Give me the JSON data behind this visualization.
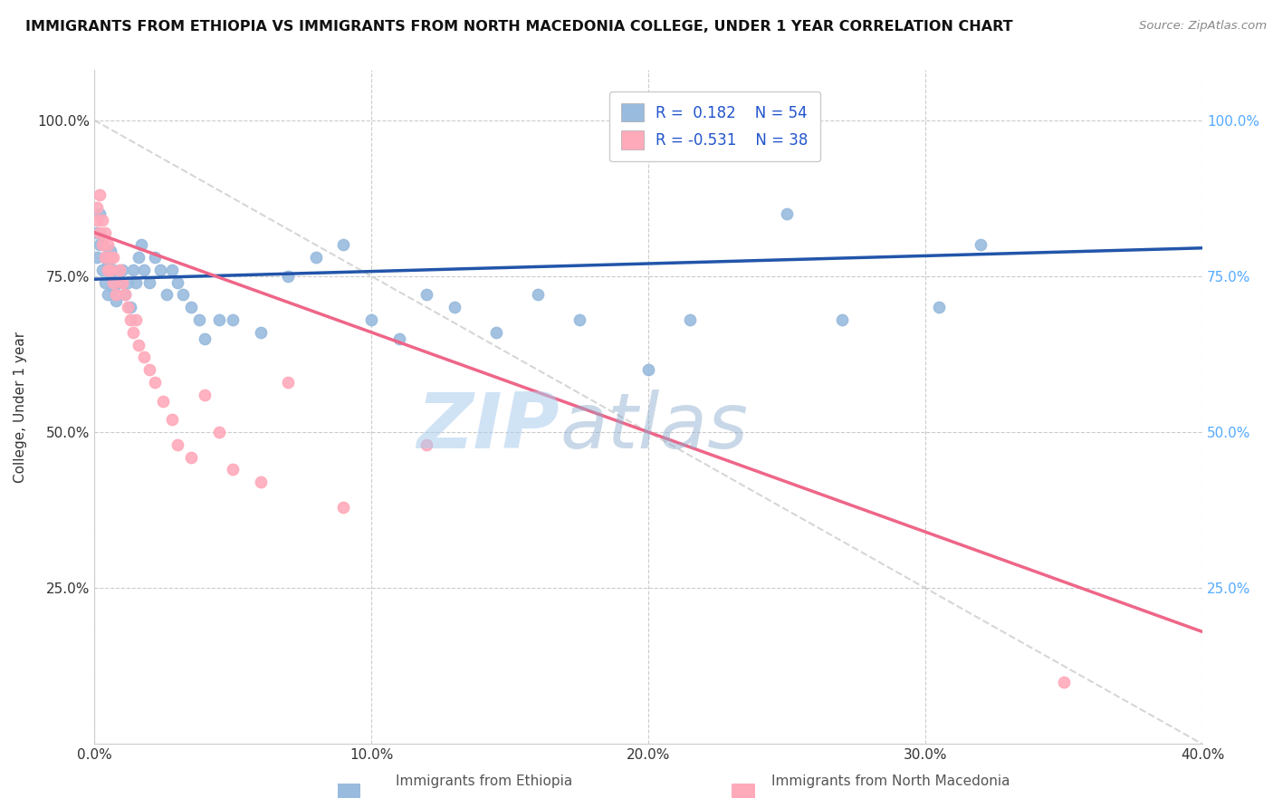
{
  "title": "IMMIGRANTS FROM ETHIOPIA VS IMMIGRANTS FROM NORTH MACEDONIA COLLEGE, UNDER 1 YEAR CORRELATION CHART",
  "source_text": "Source: ZipAtlas.com",
  "ylabel": "College, Under 1 year",
  "xlim": [
    0.0,
    0.4
  ],
  "ylim": [
    0.0,
    1.08
  ],
  "xtick_labels": [
    "0.0%",
    "10.0%",
    "20.0%",
    "30.0%",
    "40.0%"
  ],
  "xtick_values": [
    0.0,
    0.1,
    0.2,
    0.3,
    0.4
  ],
  "ytick_labels": [
    "25.0%",
    "50.0%",
    "75.0%",
    "100.0%"
  ],
  "ytick_values": [
    0.25,
    0.5,
    0.75,
    1.0
  ],
  "right_ytick_labels": [
    "100.0%",
    "75.0%",
    "50.0%",
    "25.0%"
  ],
  "right_ytick_values": [
    1.0,
    0.75,
    0.5,
    0.25
  ],
  "watermark_zip": "ZIP",
  "watermark_atlas": "atlas",
  "legend_r1": "R =  0.182",
  "legend_n1": "N = 54",
  "legend_r2": "R = -0.531",
  "legend_n2": "N = 38",
  "color_ethiopia": "#99BBDD",
  "color_macedonia": "#FFAABB",
  "trend_color_ethiopia": "#2255AA",
  "trend_color_macedonia": "#EE6688",
  "ethiopia_x": [
    0.001,
    0.001,
    0.002,
    0.002,
    0.003,
    0.003,
    0.004,
    0.004,
    0.005,
    0.005,
    0.006,
    0.006,
    0.007,
    0.007,
    0.008,
    0.009,
    0.01,
    0.011,
    0.012,
    0.013,
    0.014,
    0.015,
    0.016,
    0.017,
    0.018,
    0.02,
    0.022,
    0.024,
    0.026,
    0.028,
    0.03,
    0.032,
    0.035,
    0.038,
    0.04,
    0.045,
    0.05,
    0.06,
    0.07,
    0.08,
    0.09,
    0.1,
    0.11,
    0.12,
    0.13,
    0.145,
    0.16,
    0.175,
    0.2,
    0.215,
    0.25,
    0.27,
    0.305,
    0.32
  ],
  "ethiopia_y": [
    0.78,
    0.82,
    0.8,
    0.85,
    0.76,
    0.8,
    0.74,
    0.78,
    0.72,
    0.77,
    0.75,
    0.79,
    0.73,
    0.76,
    0.71,
    0.74,
    0.76,
    0.72,
    0.74,
    0.7,
    0.76,
    0.74,
    0.78,
    0.8,
    0.76,
    0.74,
    0.78,
    0.76,
    0.72,
    0.76,
    0.74,
    0.72,
    0.7,
    0.68,
    0.65,
    0.68,
    0.68,
    0.66,
    0.75,
    0.78,
    0.8,
    0.68,
    0.65,
    0.72,
    0.7,
    0.66,
    0.72,
    0.68,
    0.6,
    0.68,
    0.85,
    0.68,
    0.7,
    0.8
  ],
  "macedonia_x": [
    0.001,
    0.001,
    0.002,
    0.002,
    0.003,
    0.003,
    0.004,
    0.004,
    0.005,
    0.005,
    0.006,
    0.006,
    0.007,
    0.007,
    0.008,
    0.009,
    0.01,
    0.011,
    0.012,
    0.013,
    0.014,
    0.015,
    0.016,
    0.018,
    0.02,
    0.022,
    0.025,
    0.028,
    0.03,
    0.035,
    0.04,
    0.045,
    0.05,
    0.06,
    0.07,
    0.09,
    0.12,
    0.35
  ],
  "macedonia_y": [
    0.86,
    0.84,
    0.82,
    0.88,
    0.8,
    0.84,
    0.78,
    0.82,
    0.76,
    0.8,
    0.78,
    0.76,
    0.74,
    0.78,
    0.72,
    0.76,
    0.74,
    0.72,
    0.7,
    0.68,
    0.66,
    0.68,
    0.64,
    0.62,
    0.6,
    0.58,
    0.55,
    0.52,
    0.48,
    0.46,
    0.56,
    0.5,
    0.44,
    0.42,
    0.58,
    0.38,
    0.48,
    0.1
  ],
  "trend_eth_x0": 0.0,
  "trend_eth_x1": 0.4,
  "trend_eth_y0": 0.745,
  "trend_eth_y1": 0.795,
  "trend_mac_x0": 0.0,
  "trend_mac_x1": 0.4,
  "trend_mac_y0": 0.82,
  "trend_mac_y1": 0.18,
  "ref_line_x": [
    0.0,
    0.4
  ],
  "ref_line_y": [
    1.0,
    0.0
  ],
  "fig_width": 14.06,
  "fig_height": 8.92,
  "dpi": 100
}
